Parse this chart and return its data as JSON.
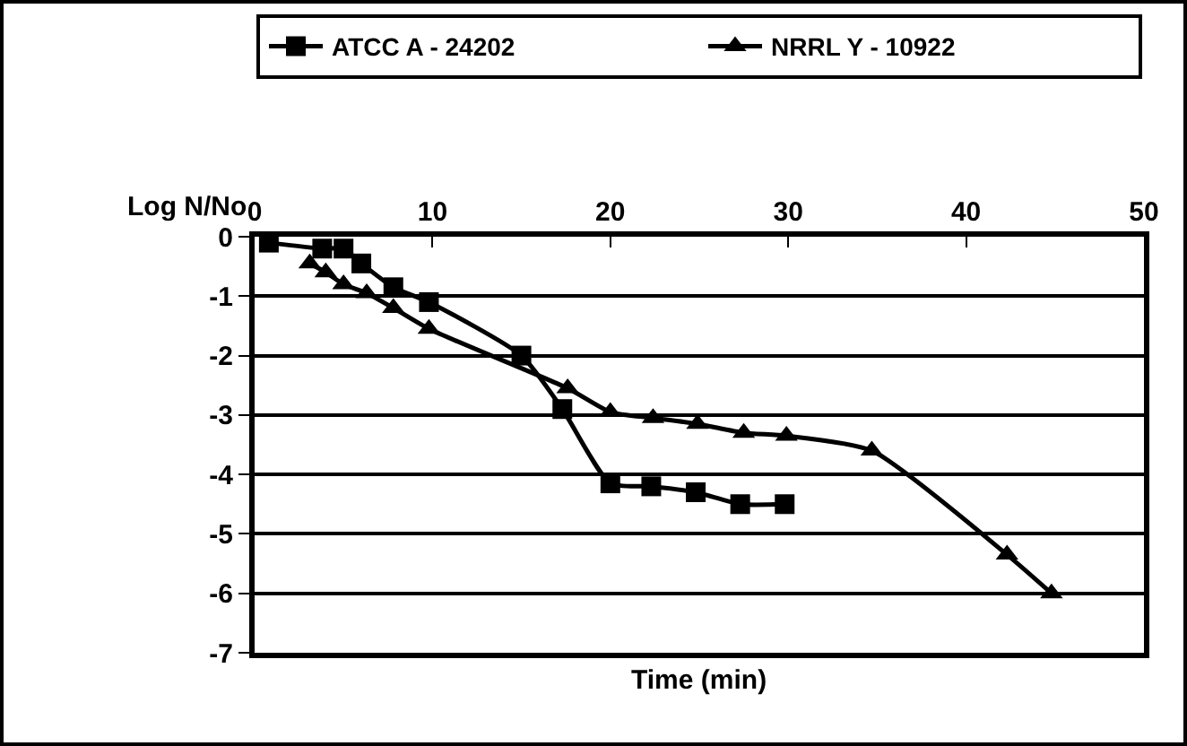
{
  "chart_data": {
    "type": "line",
    "xlabel": "Time (min)",
    "ylabel": "Log N/No",
    "xlim": [
      0,
      50
    ],
    "xticks": [
      0,
      10,
      20,
      30,
      40,
      50
    ],
    "ylim": [
      -7,
      0
    ],
    "yticks": [
      0,
      -1,
      -2,
      -3,
      -4,
      -5,
      -6,
      -7
    ],
    "grid": "y",
    "legend": "top",
    "line_style": "solid",
    "series": [
      {
        "name": "ATCC A - 24202",
        "color": "#000000",
        "marker": "square",
        "x": [
          0.8,
          3.8,
          5,
          6,
          7.8,
          9.8,
          15,
          17.3,
          20,
          22.3,
          24.8,
          27.3,
          29.8
        ],
        "values": [
          -0.1,
          -0.2,
          -0.2,
          -0.45,
          -0.85,
          -1.1,
          -2.0,
          -2.9,
          -4.15,
          -4.2,
          -4.3,
          -4.5,
          -4.5
        ]
      },
      {
        "name": "NRRL Y - 10922",
        "color": "#000000",
        "marker": "triangle",
        "x": [
          3.1,
          4,
          5,
          6.3,
          7.8,
          9.8,
          17.6,
          20,
          22.4,
          24.9,
          27.5,
          29.9,
          34.7,
          42.3,
          44.8
        ],
        "values": [
          -0.45,
          -0.6,
          -0.8,
          -0.95,
          -1.2,
          -1.55,
          -2.55,
          -2.95,
          -3.05,
          -3.15,
          -3.3,
          -3.35,
          -3.6,
          -5.35,
          -6.0
        ]
      }
    ]
  }
}
